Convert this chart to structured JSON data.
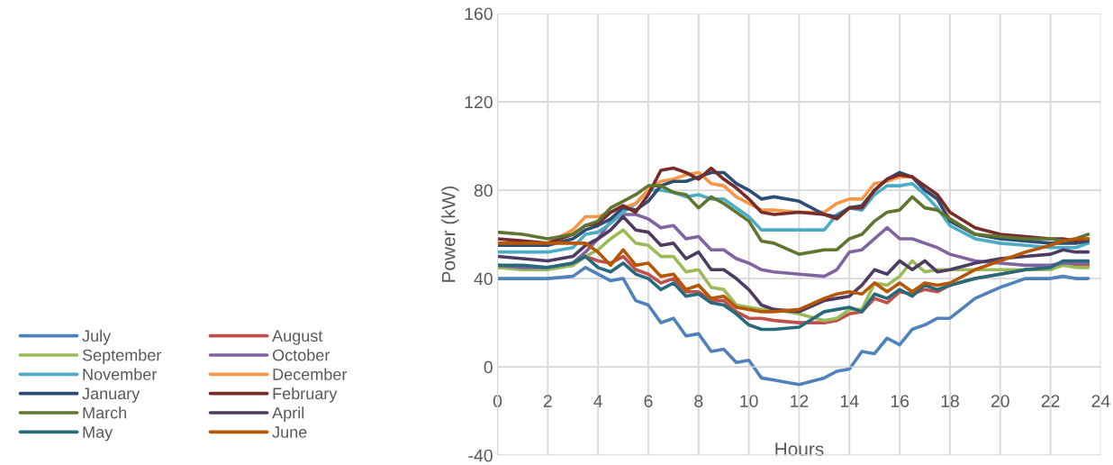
{
  "chart_data": {
    "type": "line",
    "xlabel": "Hours",
    "ylabel": "Power (kW)",
    "x": [
      0,
      1,
      2,
      3,
      3.5,
      4,
      4.5,
      5,
      5.5,
      6,
      6.5,
      7,
      7.5,
      8,
      8.5,
      9,
      9.5,
      10,
      10.5,
      11,
      12,
      13,
      13.5,
      14,
      14.5,
      15,
      15.5,
      16,
      16.5,
      17,
      17.5,
      18,
      19,
      20,
      21,
      22,
      22.5,
      23,
      23.5
    ],
    "xlim": [
      0,
      24
    ],
    "xticks": [
      0,
      2,
      4,
      6,
      8,
      10,
      12,
      14,
      16,
      18,
      20,
      22,
      24
    ],
    "ylim": [
      -40,
      160
    ],
    "yticks": [
      -40,
      0,
      40,
      80,
      120,
      160
    ],
    "grid": true,
    "legend": "left",
    "series": [
      {
        "name": "July",
        "color": "#4f81bd",
        "values": [
          40,
          40,
          40,
          41,
          45,
          42,
          39,
          40,
          30,
          28,
          20,
          22,
          14,
          15,
          7,
          8,
          2,
          3,
          -5,
          -6,
          -8,
          -5,
          -2,
          -1,
          7,
          6,
          13,
          10,
          17,
          19,
          22,
          22,
          31,
          36,
          40,
          40,
          41,
          40,
          40
        ]
      },
      {
        "name": "August",
        "color": "#c0504d",
        "values": [
          null,
          null,
          45,
          46,
          50,
          48,
          47,
          50,
          44,
          42,
          38,
          40,
          34,
          34,
          30,
          30,
          25,
          22,
          22,
          21,
          20,
          20,
          21,
          24,
          25,
          31,
          29,
          34,
          33,
          35,
          34,
          37,
          40,
          42,
          44,
          45,
          47,
          46,
          46
        ]
      },
      {
        "name": "September",
        "color": "#9bbb59",
        "values": [
          45,
          44,
          44,
          46,
          50,
          53,
          58,
          62,
          56,
          55,
          50,
          50,
          43,
          44,
          36,
          35,
          28,
          27,
          26,
          26,
          24,
          21,
          22,
          26,
          26,
          38,
          37,
          41,
          48,
          43,
          44,
          44,
          44,
          44,
          44,
          44,
          46,
          45,
          45
        ]
      },
      {
        "name": "October",
        "color": "#8064a2",
        "values": [
          46,
          45,
          45,
          47,
          52,
          58,
          66,
          69,
          69,
          67,
          63,
          64,
          58,
          59,
          53,
          53,
          49,
          47,
          44,
          43,
          42,
          41,
          44,
          52,
          53,
          58,
          63,
          58,
          58,
          56,
          54,
          51,
          48,
          47,
          46,
          46,
          47,
          47,
          47
        ]
      },
      {
        "name": "November",
        "color": "#4bacc6",
        "values": [
          52,
          52,
          52,
          54,
          60,
          61,
          65,
          70,
          74,
          80,
          80,
          79,
          77,
          78,
          76,
          76,
          72,
          68,
          62,
          62,
          62,
          62,
          69,
          72,
          71,
          78,
          82,
          82,
          83,
          78,
          72,
          64,
          58,
          56,
          55,
          54,
          54,
          54,
          56
        ]
      },
      {
        "name": "December",
        "color": "#f79646",
        "values": [
          56,
          56,
          56,
          62,
          68,
          68,
          70,
          72,
          74,
          80,
          84,
          85,
          87,
          88,
          83,
          82,
          77,
          74,
          71,
          71,
          70,
          70,
          74,
          76,
          76,
          83,
          84,
          86,
          86,
          80,
          76,
          67,
          60,
          null,
          null,
          null,
          null,
          null,
          null
        ]
      },
      {
        "name": "January",
        "color": "#2c4d75",
        "values": [
          55,
          55,
          55,
          58,
          62,
          64,
          67,
          72,
          71,
          75,
          82,
          84,
          84,
          86,
          88,
          88,
          83,
          80,
          76,
          77,
          75,
          69,
          68,
          72,
          73,
          80,
          85,
          88,
          86,
          80,
          76,
          66,
          60,
          58,
          57,
          56,
          56,
          56,
          57
        ]
      },
      {
        "name": "February",
        "color": "#772c2a",
        "values": [
          58,
          57,
          56,
          60,
          64,
          65,
          70,
          73,
          70,
          78,
          89,
          90,
          88,
          85,
          90,
          85,
          81,
          76,
          70,
          69,
          70,
          69,
          67,
          72,
          72,
          80,
          85,
          87,
          86,
          82,
          78,
          70,
          63,
          60,
          59,
          58,
          58,
          57,
          58
        ]
      },
      {
        "name": "March",
        "color": "#5f7530",
        "values": [
          61,
          60,
          58,
          60,
          64,
          66,
          72,
          75,
          78,
          82,
          82,
          79,
          78,
          72,
          77,
          74,
          70,
          66,
          57,
          56,
          51,
          53,
          53,
          58,
          60,
          66,
          70,
          71,
          77,
          72,
          71,
          67,
          60,
          59,
          58,
          58,
          57,
          58,
          60
        ]
      },
      {
        "name": "April",
        "color": "#4d3b62",
        "values": [
          50,
          49,
          48,
          50,
          55,
          58,
          62,
          68,
          62,
          61,
          55,
          56,
          49,
          52,
          44,
          44,
          40,
          35,
          28,
          26,
          25,
          30,
          31,
          32,
          37,
          44,
          42,
          48,
          44,
          48,
          43,
          44,
          47,
          49,
          50,
          51,
          53,
          52,
          52
        ]
      },
      {
        "name": "May",
        "color": "#276a7c",
        "values": [
          46,
          46,
          45,
          47,
          50,
          45,
          43,
          47,
          42,
          40,
          35,
          38,
          32,
          33,
          29,
          28,
          24,
          19,
          17,
          17,
          18,
          25,
          26,
          27,
          25,
          33,
          31,
          35,
          32,
          37,
          35,
          37,
          40,
          42,
          44,
          45,
          48,
          48,
          48
        ]
      },
      {
        "name": "June",
        "color": "#b65708",
        "values": [
          56,
          56,
          56,
          56,
          56,
          52,
          46,
          53,
          46,
          47,
          41,
          42,
          35,
          37,
          31,
          32,
          27,
          26,
          25,
          25,
          26,
          31,
          33,
          34,
          33,
          38,
          34,
          38,
          34,
          38,
          37,
          38,
          44,
          48,
          52,
          55,
          57,
          58,
          58
        ]
      }
    ]
  }
}
